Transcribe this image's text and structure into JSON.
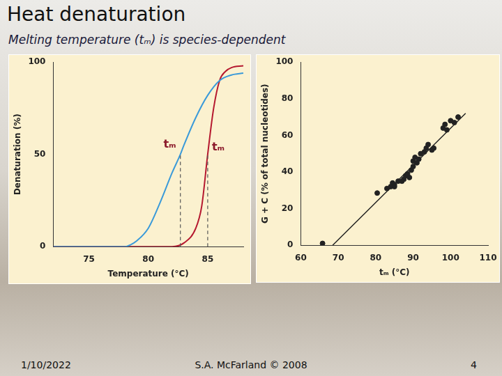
{
  "slide": {
    "title": "Heat denaturation",
    "subtitle": "Melting temperature (tₘ) is species-dependent",
    "date": "1/10/2022",
    "footer": "S.A. McFarland © 2008",
    "page": "4"
  },
  "chart_data": [
    {
      "type": "line",
      "x_label": "Temperature (°C)",
      "y_label": "Denaturation (%)",
      "xlim": [
        72,
        88
      ],
      "xticks": [
        75,
        80,
        85
      ],
      "ylim": [
        0,
        100
      ],
      "yticks": [
        0,
        50,
        100
      ],
      "grid": false,
      "series": [
        {
          "color": "#3a9ad9",
          "x": [
            72,
            74,
            76,
            78,
            78.5,
            79,
            80,
            81,
            82,
            82.7,
            83,
            84,
            85,
            86,
            87,
            88
          ],
          "values": [
            0,
            0,
            0,
            0,
            1,
            3,
            10,
            24,
            40,
            50,
            55,
            70,
            82,
            90,
            93,
            94
          ]
        },
        {
          "color": "#b5182f",
          "x": [
            72,
            76,
            80,
            82,
            83,
            84,
            84.5,
            85,
            85.5,
            86,
            86.5,
            87,
            88
          ],
          "values": [
            0,
            0,
            0,
            0,
            2,
            10,
            22,
            50,
            75,
            90,
            95,
            97,
            98
          ]
        }
      ],
      "annotations": [
        {
          "text": "tₘ",
          "x": 82.7,
          "y": 50,
          "color": "#8b1a2b"
        },
        {
          "text": "tₘ",
          "x": 85,
          "y": 50,
          "color": "#8b1a2b"
        }
      ]
    },
    {
      "type": "scatter",
      "x_label": "tₘ (°C)",
      "y_label": "G + C (% of total nucleotides)",
      "xlim": [
        60,
        110
      ],
      "xticks": [
        60,
        70,
        80,
        90,
        100,
        110
      ],
      "ylim": [
        0,
        100
      ],
      "yticks": [
        0,
        20,
        40,
        60,
        80,
        100
      ],
      "grid": false,
      "color": "#222222",
      "x": [
        65.8,
        80.4,
        83,
        84,
        84.5,
        85,
        85,
        86,
        87,
        87.5,
        88,
        88.5,
        89,
        89.5,
        90,
        90,
        90.5,
        91,
        91.5,
        92,
        93,
        93.5,
        94,
        95,
        95.5,
        98,
        98.5,
        99,
        100,
        101,
        102
      ],
      "values": [
        1,
        28.5,
        31,
        32,
        34,
        32,
        33,
        35,
        35,
        36,
        38,
        39,
        37,
        41,
        43,
        46,
        48,
        45,
        47,
        50,
        51,
        53,
        55,
        52,
        53,
        64,
        66,
        63,
        68,
        67,
        70
      ],
      "fit_line": {
        "x": [
          68.5,
          104
        ],
        "values": [
          0,
          72
        ]
      }
    }
  ]
}
